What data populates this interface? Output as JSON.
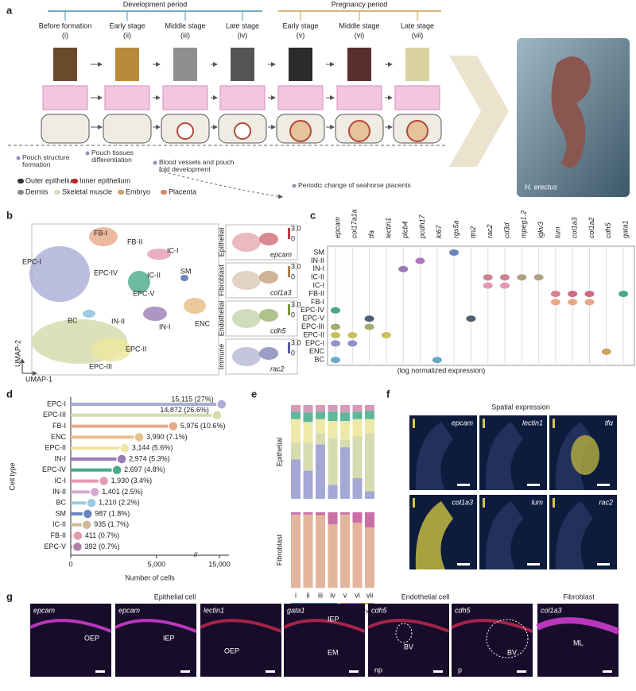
{
  "panel_labels": [
    "a",
    "b",
    "c",
    "d",
    "e",
    "f",
    "g"
  ],
  "panel_a": {
    "development_period": "Development period",
    "pregnancy_period": "Pregnancy period",
    "stages": [
      {
        "name": "Before formation",
        "number": "(i)"
      },
      {
        "name": "Early stage",
        "number": "(ii)"
      },
      {
        "name": "Middle stage",
        "number": "(iii)"
      },
      {
        "name": "Late stage",
        "number": "(iv)"
      },
      {
        "name": "Early stage",
        "number": "(v)"
      },
      {
        "name": "Middle stage",
        "number": "(vi)"
      },
      {
        "name": "Late stage",
        "number": "(vii)"
      }
    ],
    "annotations": [
      "Pouch structure formation",
      "Pouch tissues differentiation",
      "Blood vessels and pouch fold development",
      "Periodic change of seahorse placents"
    ],
    "legend": [
      "Outer epithelium",
      "Inner epithelium",
      "Dermis",
      "Skeletal muscle",
      "Embryo",
      "Placenta"
    ],
    "photo_label": "H. erectus"
  },
  "panel_b": {
    "clusters": [
      "FB-I",
      "FB-II",
      "IC-I",
      "EPC-I",
      "EPC-IV",
      "IC-II",
      "SM",
      "EPC-V",
      "BC",
      "IN-II",
      "IN-I",
      "ENC",
      "EPC-II",
      "EPC-III"
    ],
    "umap_y": "UMAP-2",
    "umap_x": "UMAP-1",
    "insets": [
      {
        "type": "Epithelial",
        "gene": "epcam",
        "scale_max": "3.0",
        "scale_min": "0"
      },
      {
        "type": "Fibroblast",
        "gene": "col1a3",
        "scale_max": "3.0",
        "scale_min": "0"
      },
      {
        "type": "Endothelial",
        "gene": "cdh5",
        "scale_max": "3.0",
        "scale_min": "0"
      },
      {
        "type": "Immune",
        "gene": "rac2",
        "scale_max": "3.0",
        "scale_min": "0"
      }
    ]
  },
  "panel_c": {
    "genes": [
      "epcam",
      "col17a1a",
      "tfa",
      "lectin1",
      "plcb4",
      "pcdh17",
      "ki67",
      "rgs5a",
      "ttn2",
      "rac2",
      "cd3d",
      "mpeg1.2",
      "igkv3",
      "lum",
      "col1a3",
      "col1a2",
      "cdh5",
      "gata1"
    ],
    "clusters": [
      "SM",
      "IN-II",
      "IN-I",
      "IC-II",
      "IC-I",
      "FB-II",
      "FB-I",
      "EPC-IV",
      "EPC-V",
      "EPC-III",
      "EPC-II",
      "EPC-I",
      "ENC",
      "BC"
    ],
    "caption": "(log normalized expression)"
  },
  "chart_data": [
    {
      "type": "lollipop",
      "ylabel": "Cell type",
      "xlabel": "Number of cells",
      "categories": [
        "EPC-I",
        "EPC-III",
        "FB-I",
        "ENC",
        "EPC-II",
        "IN-I",
        "EPC-IV",
        "IC-I",
        "IN-II",
        "BC",
        "SM",
        "IC-II",
        "FB-II",
        "EPC-V"
      ],
      "values": [
        15115,
        14872,
        5976,
        3990,
        3144,
        2974,
        2697,
        1930,
        1401,
        1210,
        987,
        935,
        411,
        392
      ],
      "value_labels": [
        "15,115 (27%)",
        "14,872 (26.6%)",
        "5,976 (10.6%)",
        "3,990 (7.1%)",
        "3,144 (5.6%)",
        "2,974 (5.3%)",
        "2,697 (4.8%)",
        "1,930 (3.4%)",
        "1,401 (2.5%)",
        "1,210 (2.2%)",
        "987 (1.8%)",
        "935 (1.7%)",
        "411 (0.7%)",
        "392 (0.7%)"
      ],
      "colors": [
        "#a9acd6",
        "#d6dcae",
        "#e8a887",
        "#e6c08c",
        "#ece6a0",
        "#9a7bb5",
        "#4aaa88",
        "#e49ab0",
        "#d8a8d0",
        "#9ecbe0",
        "#6a87bd",
        "#d0b898",
        "#e29aa8",
        "#b080a8"
      ],
      "xlim": [
        0,
        15500
      ],
      "xbreak": [
        7000,
        14000
      ],
      "xticks": [
        0,
        {
          "value": 5000,
          "label": "5,000"
        },
        {
          "value": 15000,
          "label": "15,000"
        }
      ]
    },
    {
      "type": "stacked_bar",
      "categories": [
        "i",
        "ii",
        "iii",
        "iv",
        "v",
        "vi",
        "vii"
      ],
      "category_groups": [
        "Development",
        "Development",
        "Development",
        "Development",
        "Pregnancy",
        "Pregnancy",
        "Pregnancy"
      ],
      "group_colors": [
        "#4a8fb0",
        "#c9a040"
      ],
      "ylim": [
        0,
        100
      ],
      "panels": [
        {
          "name": "Epithelial",
          "series": [
            {
              "color": "#a4a8d4",
              "values": [
                42,
                30,
                58,
                15,
                55,
                22,
                8
              ]
            },
            {
              "color": "#d6dcb0",
              "values": [
                18,
                30,
                12,
                50,
                8,
                45,
                62
              ]
            },
            {
              "color": "#efe9a8",
              "values": [
                25,
                22,
                15,
                18,
                20,
                18,
                15
              ]
            },
            {
              "color": "#5fb79a",
              "values": [
                8,
                10,
                8,
                10,
                9,
                8,
                9
              ]
            },
            {
              "color": "#d79ab8",
              "values": [
                7,
                8,
                7,
                7,
                8,
                7,
                6
              ]
            }
          ]
        },
        {
          "name": "Fibroblast",
          "series": [
            {
              "color": "#e3b59c",
              "values": [
                97,
                97,
                96,
                84,
                97,
                86,
                80
              ]
            },
            {
              "color": "#c970a6",
              "values": [
                3,
                3,
                4,
                16,
                3,
                14,
                20
              ]
            }
          ]
        }
      ]
    }
  ],
  "panel_f": {
    "title": "Spatial expression",
    "genes": [
      "epcam",
      "lectin1",
      "tfα",
      "col1a3",
      "lum",
      "rac2"
    ]
  },
  "panel_g": {
    "groups": [
      "Epithelial cell",
      "Endothelial cell",
      "Fibroblast"
    ],
    "images": [
      {
        "gene": "epcam",
        "labels": [
          "OEP"
        ]
      },
      {
        "gene": "epcam",
        "labels": [
          "IEP"
        ]
      },
      {
        "gene": "lectin1",
        "labels": [
          "OEP"
        ]
      },
      {
        "gene": "gata1",
        "labels": [
          "IEP",
          "EM"
        ]
      },
      {
        "gene": "cdh5",
        "labels": [
          "BV",
          "np"
        ]
      },
      {
        "gene": "cdh5",
        "labels": [
          "BV",
          "p"
        ]
      },
      {
        "gene": "col1a3",
        "labels": [
          "ML"
        ]
      }
    ]
  }
}
